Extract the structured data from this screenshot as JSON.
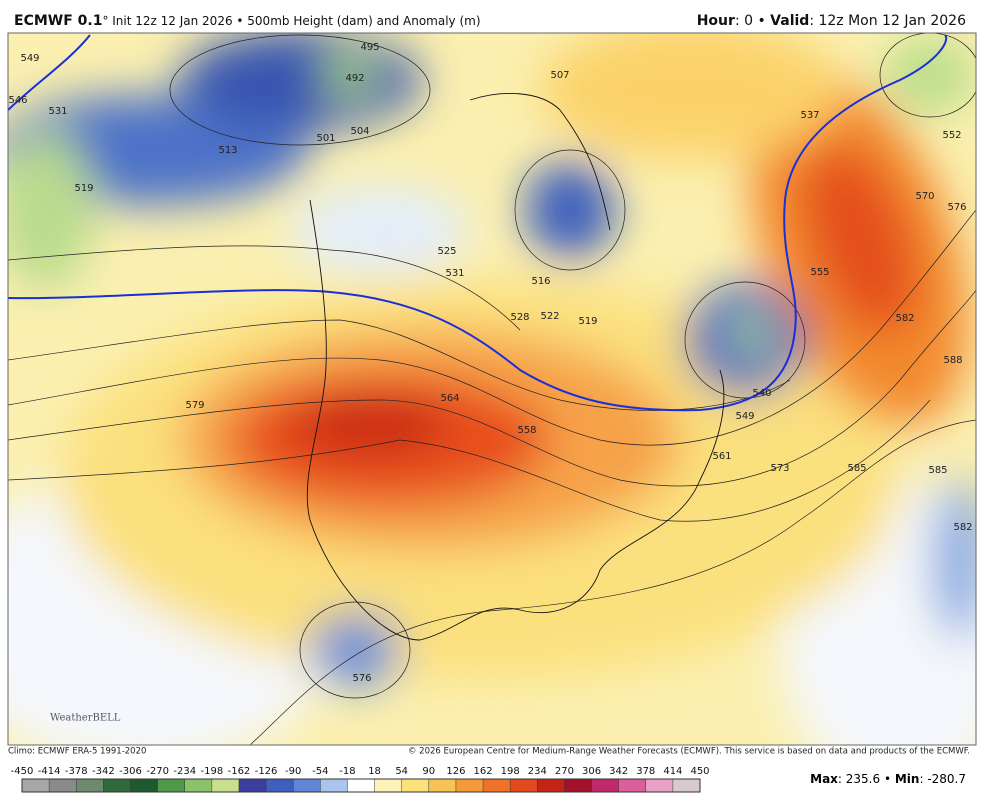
{
  "header": {
    "model": "ECMWF 0.1",
    "run": "° Init 12z 12 Jan 2026 • 500mb Height (dam) and Anomaly (m)",
    "hour_label": "Hour",
    "hour_value": ": 0 • ",
    "valid_label": "Valid",
    "valid_value": ": 12z Mon 12 Jan 2026"
  },
  "map": {
    "contour_labels": [
      "579",
      "564",
      "558",
      "540",
      "549",
      "561",
      "573",
      "585",
      "582",
      "588",
      "585",
      "582",
      "576",
      "570",
      "552",
      "537",
      "525",
      "531",
      "516",
      "519",
      "528",
      "522",
      "495",
      "492",
      "501",
      "504",
      "513",
      "519",
      "531",
      "546",
      "549",
      "576",
      "555",
      "507"
    ],
    "logo": "WeatherBELL"
  },
  "footer": {
    "climo": "Climo: ECMWF ERA-5 1991-2020",
    "copyright": "© 2026 European Centre for Medium-Range Weather Forecasts (ECMWF). This service is based on data and products of the ECMWF."
  },
  "colorbar": {
    "ticks": [
      -450,
      -414,
      -378,
      -342,
      -306,
      -270,
      -234,
      -198,
      -162,
      -126,
      -90,
      -54,
      -18,
      18,
      54,
      90,
      126,
      162,
      198,
      234,
      270,
      306,
      342,
      378,
      414,
      450
    ],
    "colors": [
      "#a8a8a8",
      "#8a8a8a",
      "#6e8a6e",
      "#2f6b3a",
      "#1f5a2e",
      "#4f9a4a",
      "#8cc26a",
      "#c8e08c",
      "#3a3f9e",
      "#3e5fbd",
      "#5f86d6",
      "#a9c5ee",
      "#ffffff",
      "#fdf3b8",
      "#fbe27a",
      "#f8c255",
      "#f59a3c",
      "#ee7328",
      "#e04a1c",
      "#c42414",
      "#a3102a",
      "#c02a6c",
      "#d9609c",
      "#e8a0c4",
      "#d8c8d0"
    ]
  },
  "stats": {
    "max_label": "Max",
    "max": 235.6,
    "min_label": "Min",
    "min": -280.7
  }
}
